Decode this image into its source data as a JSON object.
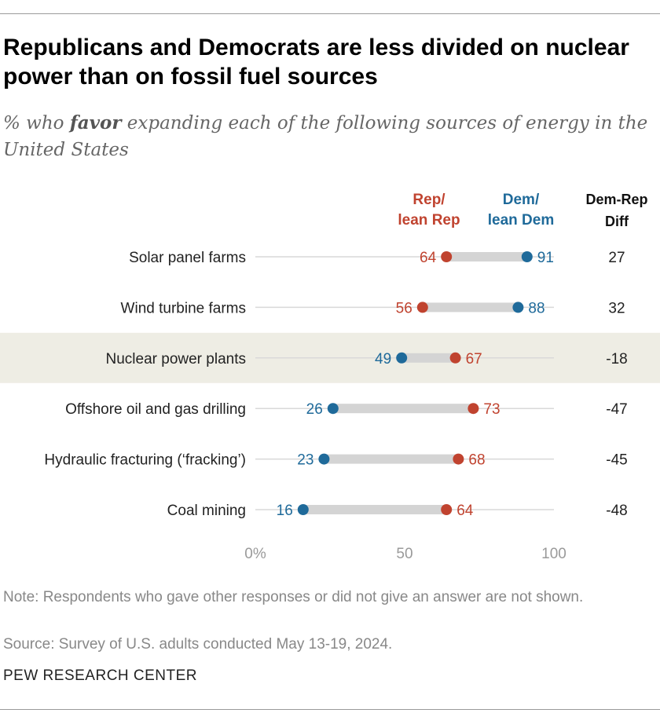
{
  "title": "Republicans and Democrats are less divided on nuclear power than on fossil fuel sources",
  "subtitle": {
    "prefix": "% who ",
    "emphasis": "favor",
    "suffix": " expanding each of the following sources of energy in the United States"
  },
  "chart_data": {
    "type": "dot",
    "columns": {
      "rep_line1": "Rep/",
      "rep_line2": "lean Rep",
      "dem_line1": "Dem/",
      "dem_line2": "lean Dem",
      "diff_line1": "Dem-Rep",
      "diff_line2": "Diff"
    },
    "categories": [
      "Solar panel farms",
      "Wind turbine farms",
      "Nuclear power plants",
      "Offshore oil and gas drilling",
      "Hydraulic fracturing (‘fracking’)",
      "Coal mining"
    ],
    "series": [
      {
        "name": "Rep/lean Rep",
        "color": "#c0432f",
        "values": [
          64,
          56,
          67,
          73,
          68,
          64
        ]
      },
      {
        "name": "Dem/lean Dem",
        "color": "#1f6a9a",
        "values": [
          91,
          88,
          49,
          26,
          23,
          16
        ]
      }
    ],
    "diff": [
      "27",
      "32",
      "-18",
      "-47",
      "-45",
      "-48"
    ],
    "highlight_index": 2,
    "highlight_color": "#eeede4",
    "xlim": [
      0,
      100
    ],
    "xticks": [
      "0%",
      "50",
      "100"
    ],
    "xtick_values": [
      0,
      50,
      100
    ]
  },
  "note": "Note: Respondents who gave other responses or did not give an answer are not shown.",
  "source": "Source: Survey of U.S. adults conducted May 13-19, 2024.",
  "brand": "PEW RESEARCH CENTER"
}
